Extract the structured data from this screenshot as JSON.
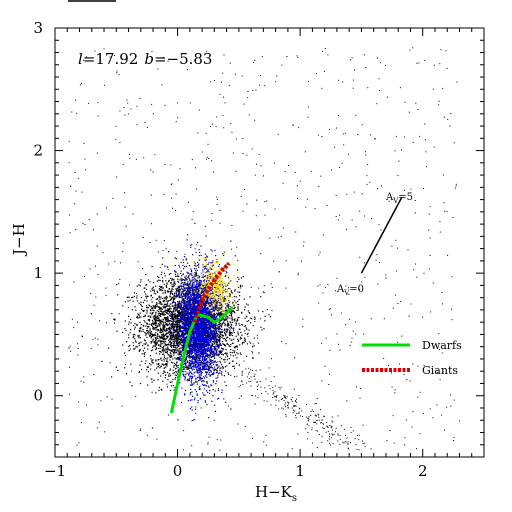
{
  "chart_data": {
    "type": "scatter",
    "title": "",
    "xlabel": "H−K",
    "xlabel_sub": "s",
    "ylabel": "J−H",
    "xlim": [
      -1,
      2.5
    ],
    "ylim": [
      -0.5,
      3
    ],
    "x_ticks": [
      -1,
      0,
      1,
      2
    ],
    "y_ticks": [
      0,
      1,
      2,
      3
    ],
    "grid": false,
    "field_label": {
      "l_symbol": "l",
      "l_value": "=17.92",
      "b_symbol": "b",
      "b_value": "=−5.83"
    },
    "reddening_vector": {
      "start": [
        1.5,
        1.0
      ],
      "end": [
        1.83,
        1.62
      ],
      "start_label": "A",
      "start_label_sub": "V",
      "start_label_value": "=0",
      "end_label": "A",
      "end_label_sub": "V",
      "end_label_value": "=5"
    },
    "series": [
      {
        "name": "Dwarfs",
        "kind": "line",
        "color": "#00dd00",
        "points": [
          [
            -0.05,
            -0.14
          ],
          [
            0.0,
            0.1
          ],
          [
            0.05,
            0.32
          ],
          [
            0.1,
            0.52
          ],
          [
            0.15,
            0.64
          ],
          [
            0.18,
            0.66
          ],
          [
            0.25,
            0.64
          ],
          [
            0.3,
            0.6
          ],
          [
            0.35,
            0.63
          ],
          [
            0.45,
            0.72
          ]
        ]
      },
      {
        "name": "Giants",
        "kind": "line",
        "color": "#dd0000",
        "points": [
          [
            0.14,
            0.6
          ],
          [
            0.18,
            0.72
          ],
          [
            0.22,
            0.82
          ],
          [
            0.27,
            0.9
          ],
          [
            0.32,
            0.97
          ],
          [
            0.36,
            1.02
          ],
          [
            0.42,
            1.08
          ]
        ]
      },
      {
        "kind": "scatter",
        "color": "#000000",
        "distribution": {
          "center": [
            0.1,
            0.58
          ],
          "spread": [
            0.2,
            0.2
          ],
          "count": 4200
        }
      },
      {
        "kind": "scatter",
        "color": "#0000dd",
        "distribution": {
          "center": [
            0.17,
            0.58
          ],
          "spread": [
            0.08,
            0.22
          ],
          "count": 2600
        }
      },
      {
        "kind": "scatter",
        "color": "#ffdd00",
        "distribution": {
          "center": [
            0.3,
            0.9
          ],
          "spread": [
            0.06,
            0.1
          ],
          "count": 380
        }
      }
    ],
    "colors": {
      "background": "#ffffff",
      "axis": "#000000",
      "dwarfs": "#00dd00",
      "giants": "#dd0000",
      "stars": "#000000",
      "stars_blue": "#0000dd",
      "stars_yellow": "#ffdd00"
    }
  }
}
